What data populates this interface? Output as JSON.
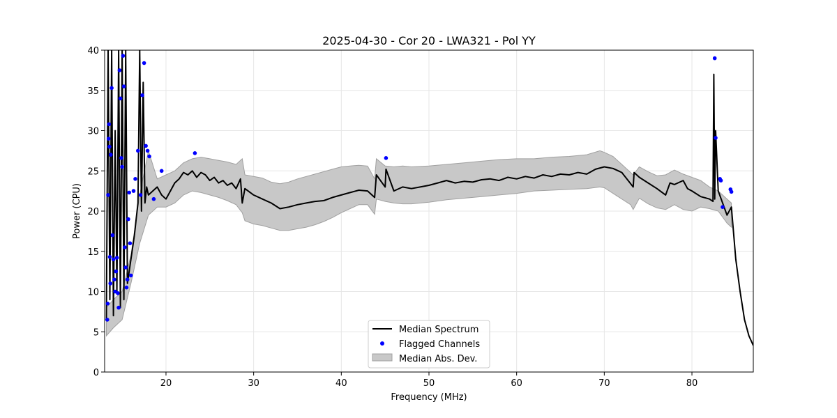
{
  "chart_data": {
    "type": "line",
    "title": "2025-04-30 - Cor 20 - LWA321 - Pol YY",
    "xlabel": "Frequency (MHz)",
    "ylabel": "Power (CPU)",
    "xlim": [
      13,
      87
    ],
    "ylim": [
      0,
      40
    ],
    "xticks": [
      20,
      30,
      40,
      50,
      60,
      70,
      80
    ],
    "yticks": [
      0,
      5,
      10,
      15,
      20,
      25,
      30,
      35,
      40
    ],
    "grid": true,
    "legend_position": "bottom-center",
    "legend": [
      "Median Spectrum",
      "Flagged Channels",
      "Median Abs. Dev."
    ],
    "colors": {
      "median": "#000000",
      "flagged": "#0000ff",
      "band_fill": "#c8c8c8",
      "band_edge": "#a0a0a0",
      "grid": "#e6e6e6"
    },
    "median_spectrum": {
      "x": [
        13.2,
        13.4,
        13.6,
        13.8,
        14.0,
        14.2,
        14.4,
        14.6,
        14.8,
        15.0,
        15.2,
        15.4,
        15.6,
        15.8,
        16.0,
        16.2,
        16.4,
        16.6,
        16.8,
        17.0,
        17.2,
        17.4,
        17.6,
        17.8,
        18.0,
        18.5,
        19.0,
        19.5,
        20.0,
        20.5,
        21.0,
        21.5,
        22.0,
        22.5,
        23.0,
        23.5,
        24.0,
        24.5,
        25.0,
        25.5,
        26.0,
        26.5,
        27.0,
        27.5,
        28.0,
        28.5,
        28.7,
        29.0,
        30.0,
        31.0,
        32.0,
        33.0,
        34.0,
        35.0,
        36.0,
        37.0,
        38.0,
        39.0,
        40.0,
        41.0,
        42.0,
        43.0,
        43.8,
        44.0,
        45.0,
        45.1,
        46.0,
        47.0,
        48.0,
        49.0,
        50.0,
        51.0,
        52.0,
        53.0,
        54.0,
        55.0,
        56.0,
        57.0,
        58.0,
        59.0,
        60.0,
        61.0,
        62.0,
        63.0,
        64.0,
        65.0,
        66.0,
        67.0,
        68.0,
        69.0,
        70.0,
        71.0,
        72.0,
        73.3,
        73.4,
        74.0,
        75.0,
        76.0,
        77.0,
        77.5,
        78.0,
        79.0,
        79.5,
        80.0,
        81.0,
        82.0,
        82.4,
        82.5,
        82.6,
        82.7,
        83.0,
        83.5,
        84.0,
        84.5,
        85.0,
        85.5,
        86.0,
        86.5,
        87.0
      ],
      "y": [
        6.5,
        40,
        9,
        40,
        7,
        30,
        10,
        40,
        8,
        40,
        9,
        40,
        11,
        12.5,
        14,
        15.5,
        17,
        19,
        21,
        40,
        20,
        36,
        21,
        23,
        22,
        22.5,
        23,
        22,
        21.5,
        22.5,
        23.5,
        24,
        24.8,
        24.5,
        25,
        24.2,
        24.8,
        24.5,
        23.8,
        24.2,
        23.5,
        23.8,
        23.2,
        23.5,
        22.8,
        24,
        21,
        22.8,
        22,
        21.5,
        21,
        20.3,
        20.5,
        20.8,
        21,
        21.2,
        21.3,
        21.7,
        22,
        22.3,
        22.6,
        22.5,
        21.7,
        24.5,
        23,
        25.2,
        22.5,
        23,
        22.8,
        23,
        23.2,
        23.5,
        23.8,
        23.5,
        23.7,
        23.6,
        23.9,
        24,
        23.8,
        24.2,
        24,
        24.3,
        24.1,
        24.5,
        24.3,
        24.6,
        24.5,
        24.8,
        24.6,
        25.2,
        25.5,
        25.3,
        24.8,
        23,
        24.8,
        24.2,
        23.5,
        22.8,
        22,
        23.5,
        23.3,
        23.8,
        22.8,
        22.5,
        21.8,
        21.5,
        21.2,
        37,
        21.5,
        30,
        22.5,
        21,
        19.5,
        20.5,
        14,
        10,
        6.5,
        4.5,
        3.3
      ]
    },
    "mad_band": {
      "x": [
        13.2,
        14.0,
        15.0,
        16.0,
        17.0,
        18.0,
        19.0,
        20.0,
        21.0,
        22.0,
        23.0,
        24.0,
        25.0,
        26.0,
        27.0,
        28.0,
        28.7,
        29.0,
        30.0,
        31.0,
        32.0,
        33.0,
        34.0,
        35.0,
        36.0,
        37.0,
        38.0,
        39.0,
        40.0,
        41.0,
        42.0,
        43.0,
        43.8,
        44.0,
        45.0,
        46.0,
        47.0,
        48.0,
        50.0,
        52.0,
        54.0,
        56.0,
        58.0,
        60.0,
        62.0,
        64.0,
        66.0,
        68.0,
        69.5,
        70.0,
        71.0,
        72.0,
        73.0,
        73.3,
        74.0,
        75.0,
        76.0,
        77.0,
        78.0,
        79.0,
        80.0,
        81.0,
        82.0,
        83.0,
        84.0,
        84.5
      ],
      "lower": [
        4.5,
        5.5,
        6.5,
        11,
        16,
        19.5,
        20.5,
        20.5,
        21.0,
        22.0,
        22.5,
        22.3,
        22.0,
        21.7,
        21.3,
        20.8,
        19.8,
        18.8,
        18.4,
        18.2,
        17.9,
        17.6,
        17.6,
        17.8,
        18.0,
        18.3,
        18.7,
        19.2,
        19.8,
        20.3,
        20.8,
        20.8,
        19.6,
        21.5,
        21.2,
        21.0,
        20.9,
        20.9,
        21.1,
        21.4,
        21.6,
        21.8,
        22.0,
        22.2,
        22.5,
        22.6,
        22.7,
        22.8,
        23.0,
        22.9,
        22.2,
        21.5,
        20.8,
        20.2,
        21.6,
        20.9,
        20.4,
        20.2,
        20.8,
        20.2,
        20.0,
        20.5,
        20.3,
        20.0,
        18.5,
        18.0
      ],
      "upper": [
        8,
        9,
        10,
        14.5,
        22,
        27.5,
        24.0,
        24.5,
        25.0,
        26.0,
        26.5,
        26.7,
        26.5,
        26.3,
        26.1,
        25.8,
        26.5,
        24.5,
        24.3,
        24.1,
        23.6,
        23.4,
        23.6,
        24.0,
        24.3,
        24.6,
        24.9,
        25.2,
        25.5,
        25.6,
        25.7,
        25.6,
        24.0,
        26.5,
        25.6,
        25.5,
        25.6,
        25.5,
        25.6,
        25.8,
        26.0,
        26.2,
        26.4,
        26.5,
        26.5,
        26.7,
        26.8,
        27.0,
        27.5,
        27.3,
        26.8,
        25.8,
        24.8,
        24.5,
        25.5,
        24.9,
        24.4,
        24.5,
        25.1,
        24.6,
        24.2,
        23.8,
        23.0,
        22.5,
        21.5,
        21.0
      ]
    },
    "flagged_channels": {
      "x": [
        13.3,
        13.35,
        13.4,
        13.45,
        13.5,
        13.55,
        13.6,
        13.65,
        13.7,
        13.8,
        13.9,
        14.0,
        14.1,
        14.2,
        14.3,
        14.4,
        14.5,
        14.6,
        14.7,
        14.8,
        14.9,
        15.0,
        15.1,
        15.2,
        15.3,
        15.4,
        15.5,
        15.6,
        15.7,
        15.8,
        15.9,
        16.0,
        16.3,
        16.5,
        16.8,
        17.1,
        17.3,
        17.5,
        17.7,
        17.9,
        18.1,
        18.6,
        19.5,
        23.3,
        45.1,
        82.6,
        82.7,
        83.2,
        83.3,
        83.5,
        84.4,
        84.5
      ],
      "y": [
        6.5,
        8.5,
        22,
        29,
        30.8,
        28,
        14.3,
        11,
        27,
        35.3,
        17,
        14,
        11.5,
        10,
        12.5,
        14.2,
        9.8,
        8,
        37.5,
        34,
        26.6,
        25.5,
        39.3,
        35.5,
        15.5,
        13,
        10.5,
        11.5,
        19,
        22.3,
        16,
        12,
        22.5,
        24,
        27.5,
        22,
        34.4,
        38.4,
        28.1,
        27.5,
        26.8,
        21.5,
        25,
        27.2,
        26.6,
        39,
        29.1,
        24,
        23.8,
        20.5,
        22.7,
        22.4
      ]
    }
  }
}
